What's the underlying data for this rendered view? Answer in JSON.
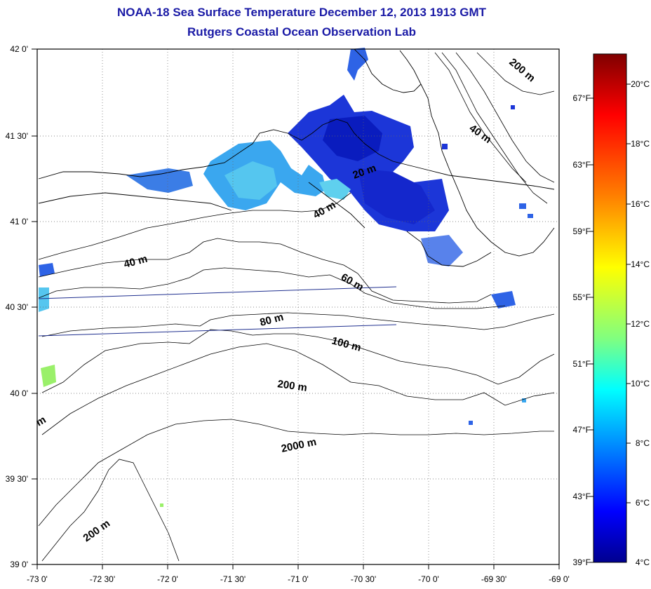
{
  "title": {
    "line1": "NOAA-18 Sea Surface Temperature December 12, 2013 1913 GMT",
    "line2": "Rutgers Coastal Ocean Observation Lab"
  },
  "map": {
    "lat_ticks": [
      "42 0'",
      "41 30'",
      "41 0'",
      "40 30'",
      "40 0'",
      "39 30'",
      "39 0'"
    ],
    "lon_ticks": [
      "-73 0'",
      "-72 30'",
      "-72 0'",
      "-71 30'",
      "-71 0'",
      "-70 30'",
      "-70 0'",
      "-69 30'",
      "-69 0'"
    ],
    "contour_labels": [
      "200 m",
      "40 m",
      "20 m",
      "40 m",
      "40 m",
      "60 m",
      "80 m",
      "100 m",
      "200 m",
      "2000 m",
      "200 m",
      "m"
    ],
    "land_color": "#ffffff",
    "line_color": "#000000",
    "track_color": "#1f2f8f"
  },
  "colorbar": {
    "celsius_labels": [
      "20°C",
      "18°C",
      "16°C",
      "14°C",
      "12°C",
      "10°C",
      "8°C",
      "6°C",
      "4°C"
    ],
    "fahrenheit_labels": [
      "67°F",
      "63°F",
      "59°F",
      "55°F",
      "51°F",
      "47°F",
      "43°F",
      "39°F"
    ],
    "gradient_colors": [
      "#7f0000",
      "#ff0000",
      "#ff8000",
      "#ffff00",
      "#80ff80",
      "#00ffff",
      "#0080ff",
      "#0000ff",
      "#00008f"
    ]
  }
}
